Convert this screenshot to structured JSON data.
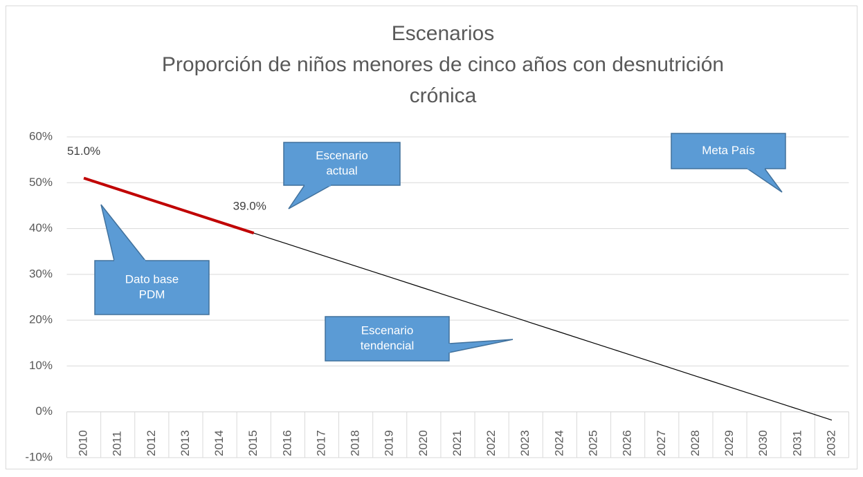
{
  "chart_data": {
    "type": "line",
    "title": [
      "Escenarios",
      "Proporción de niños menores de cinco años con desnutrición",
      "crónica"
    ],
    "categories": [
      "2010",
      "2011",
      "2012",
      "2013",
      "2014",
      "2015",
      "2016",
      "2017",
      "2018",
      "2019",
      "2020",
      "2021",
      "2022",
      "2023",
      "2024",
      "2025",
      "2026",
      "2027",
      "2028",
      "2029",
      "2030",
      "2031",
      "2032"
    ],
    "series": [
      {
        "color": "#c00000",
        "values": [
          51,
          48.6,
          46.2,
          43.8,
          41.4,
          39,
          null,
          null,
          null,
          null,
          null,
          null,
          null,
          null,
          null,
          null,
          null,
          null,
          null,
          null,
          null,
          null,
          null
        ],
        "value_labels": [
          "51.0%",
          null,
          null,
          null,
          null,
          "39.0%",
          null,
          null,
          null,
          null,
          null,
          null,
          null,
          null,
          null,
          null,
          null,
          null,
          null,
          null,
          null,
          null,
          null
        ]
      },
      {
        "color": "#000000",
        "values": [
          null,
          null,
          null,
          null,
          null,
          39,
          36.6,
          34.2,
          31.8,
          29.4,
          27,
          24.6,
          22.2,
          19.8,
          17.4,
          15,
          12.6,
          10.2,
          7.8,
          5.4,
          3,
          0.6,
          -1.8
        ]
      }
    ],
    "ylim": [
      -10,
      60
    ],
    "yticks": [
      {
        "value": -10,
        "label": "-10%"
      },
      {
        "value": 0,
        "label": "0%"
      },
      {
        "value": 10,
        "label": "10%"
      },
      {
        "value": 20,
        "label": "20%"
      },
      {
        "value": 30,
        "label": "30%"
      },
      {
        "value": 40,
        "label": "40%"
      },
      {
        "value": 50,
        "label": "50%"
      },
      {
        "value": 60,
        "label": "60%"
      }
    ],
    "grid": true,
    "annotations": [
      {
        "text": [
          "Escenario",
          "actual"
        ]
      },
      {
        "text": [
          "Meta  País"
        ]
      },
      {
        "text": [
          "Dato base",
          "PDM"
        ]
      },
      {
        "text": [
          "Escenario",
          "tendencial"
        ]
      }
    ]
  }
}
